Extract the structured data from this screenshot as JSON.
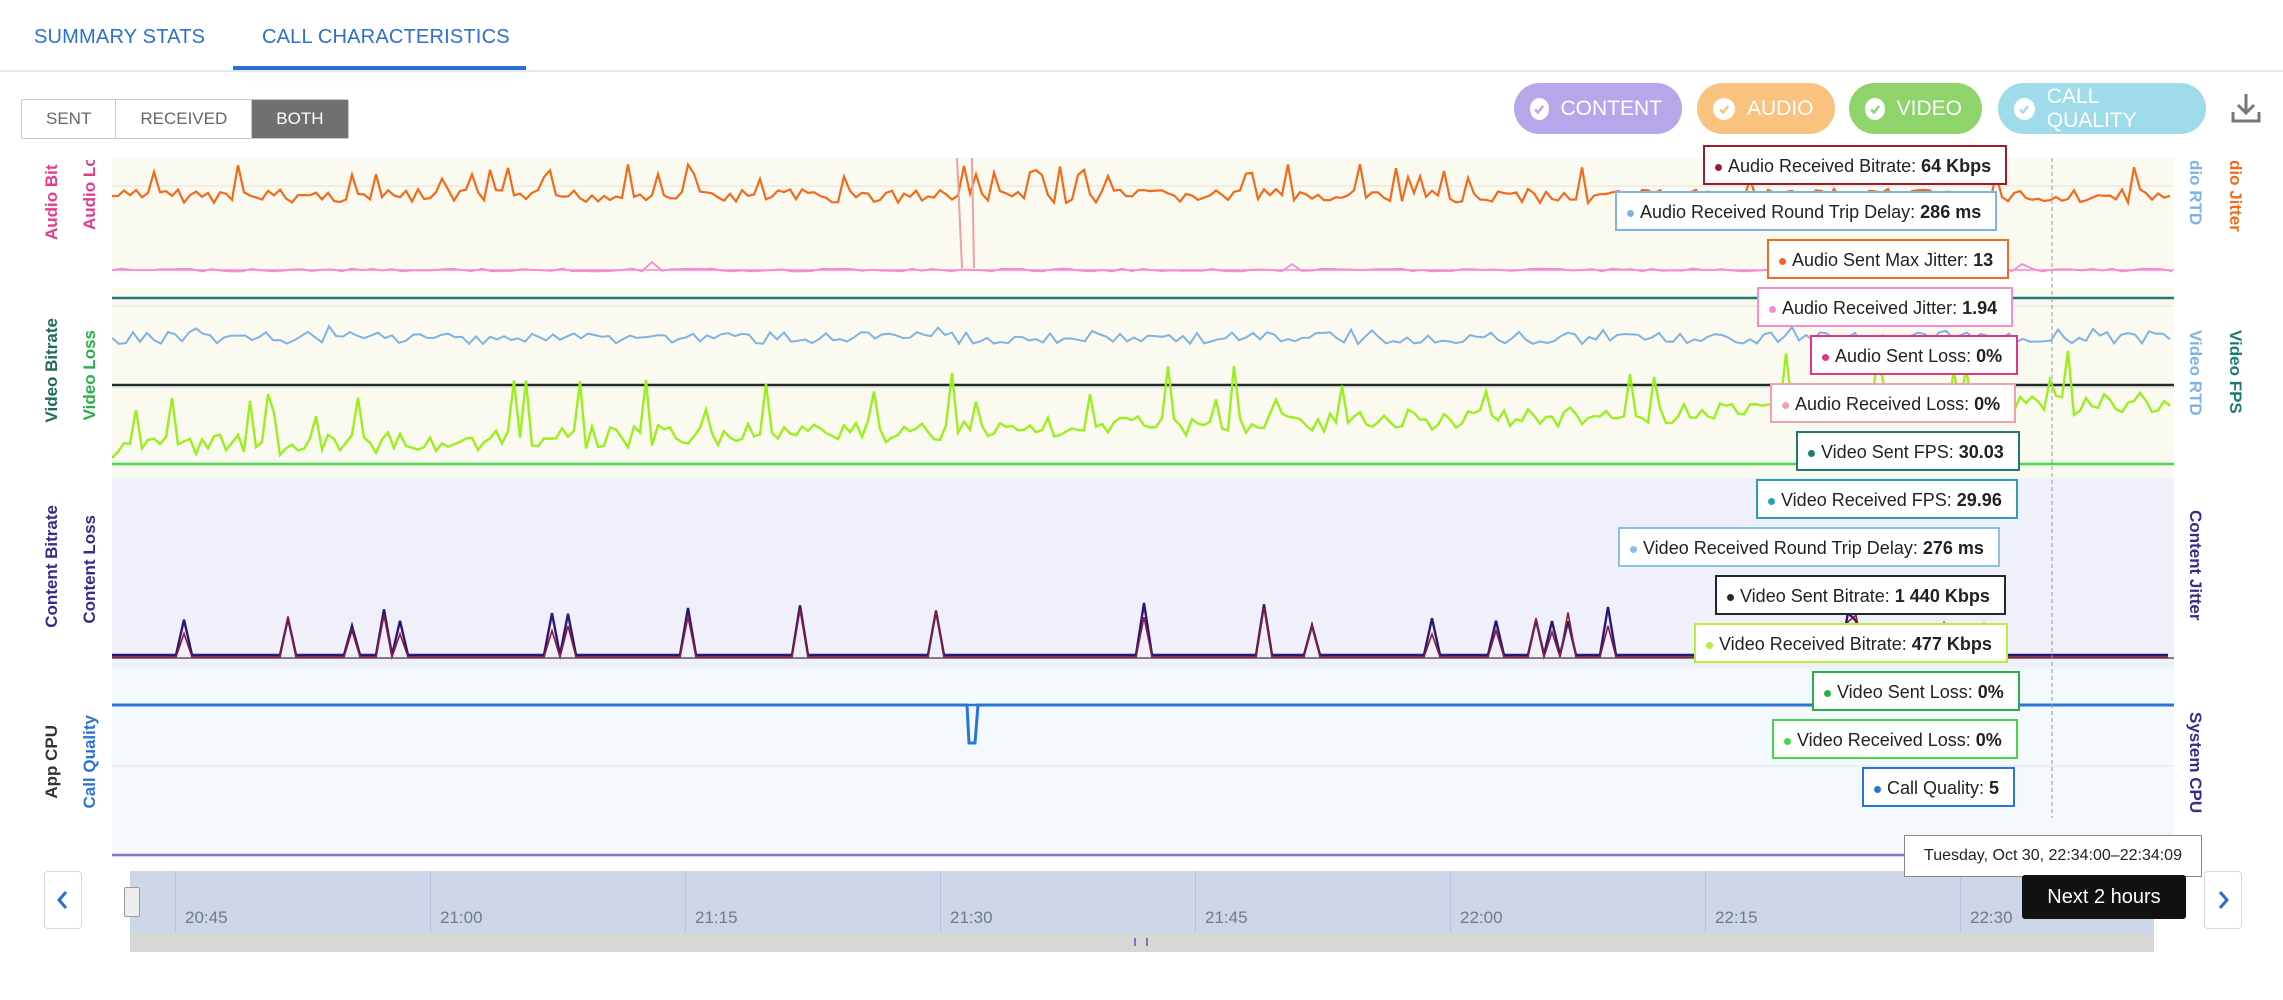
{
  "tabs": [
    {
      "label": "SUMMARY STATS",
      "active": false
    },
    {
      "label": "CALL CHARACTERISTICS",
      "active": true
    }
  ],
  "direction": {
    "options": [
      "SENT",
      "RECEIVED",
      "BOTH"
    ],
    "selected": "BOTH"
  },
  "filters": [
    {
      "label": "CONTENT",
      "color": "#b7a6ea",
      "checked": true
    },
    {
      "label": "AUDIO",
      "color": "#f9c27e",
      "checked": true
    },
    {
      "label": "VIDEO",
      "color": "#8fd46a",
      "checked": true
    },
    {
      "label": "CALL QUALITY",
      "color": "#9fdbe8",
      "checked": true
    }
  ],
  "download_icon": "download-icon",
  "axes": {
    "audio": {
      "left1": "Audio Bit",
      "left2": "Audio Lo",
      "right1": "dio RTD",
      "right2": "dio Jitter"
    },
    "video": {
      "left1": "Video Bitrate",
      "left2": "Video Loss",
      "right1": "Video RTD",
      "right2": "Video FPS"
    },
    "content": {
      "left1": "Content Bitrate",
      "left2": "Content Loss",
      "right1": "Content Jitter"
    },
    "system": {
      "left1": "App CPU",
      "left2": "Call Quality",
      "right1": "System CPU"
    }
  },
  "tooltips": [
    {
      "label": "Audio Received Bitrate:",
      "value": "64 Kbps",
      "color": "#9b1c2e"
    },
    {
      "label": "Audio Received Round Trip Delay:",
      "value": "286 ms",
      "color": "#7fb3e3"
    },
    {
      "label": "Audio Sent Max Jitter:",
      "value": "13",
      "color": "#f26a1b"
    },
    {
      "label": "Audio Received Jitter:",
      "value": "1.94",
      "color": "#f58bd0"
    },
    {
      "label": "Audio Sent Loss:",
      "value": "0%",
      "color": "#e6338a"
    },
    {
      "label": "Audio Received Loss:",
      "value": "0%",
      "color": "#f5a0a8"
    },
    {
      "label": "Video Sent FPS:",
      "value": "30.03",
      "color": "#1f7a74"
    },
    {
      "label": "Video Received FPS:",
      "value": "29.96",
      "color": "#2aa0b8"
    },
    {
      "label": "Video Received Round Trip Delay:",
      "value": "276 ms",
      "color": "#8bbfe8"
    },
    {
      "label": "Video Sent Bitrate:",
      "value": "1 440 Kbps",
      "color": "#1d2b2b"
    },
    {
      "label": "Video Received Bitrate:",
      "value": "477 Kbps",
      "color": "#b9ee3f"
    },
    {
      "label": "Video Sent Loss:",
      "value": "0%",
      "color": "#27b04a"
    },
    {
      "label": "Video Received Loss:",
      "value": "0%",
      "color": "#45d64a"
    },
    {
      "label": "Call Quality:",
      "value": "5",
      "color": "#2a74d8"
    }
  ],
  "timeline": {
    "ticks": [
      "20:45",
      "21:00",
      "21:15",
      "21:30",
      "21:45",
      "22:00",
      "22:15",
      "22:30"
    ],
    "hover_time": "Tuesday, Oct 30, 22:34:00–22:34:09",
    "next_label": "Next 2 hours"
  },
  "colors": {
    "audio_sent": "#f26a1b",
    "audio_received_jitter": "#f58bd0",
    "video_rtd": "#7fb3e3",
    "video_bitrate": "#9cef1f",
    "content": "#2a1676",
    "call_quality": "#2a74d8",
    "system_cpu": "#8a6fd0"
  }
}
